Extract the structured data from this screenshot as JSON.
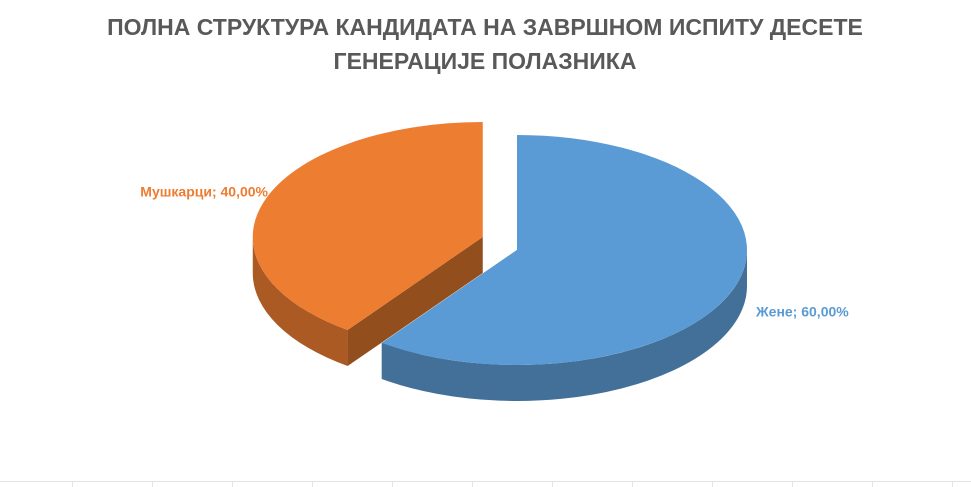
{
  "chart_data": {
    "type": "pie3d",
    "title": "ПОЛНА СТРУКТУРА КАНДИДАТА НА ЗАВРШНОМ ИСПИТУ ДЕСЕТЕ ГЕНЕРАЦИЈЕ ПОЛАЗНИКА",
    "values": [
      60,
      40
    ],
    "value_labels": [
      "Жене; 60,00%",
      "Мушкарци; 40,00%"
    ],
    "colors": [
      "#5b9bd5",
      "#ed7d31"
    ],
    "exploded": [
      false,
      true
    ]
  }
}
